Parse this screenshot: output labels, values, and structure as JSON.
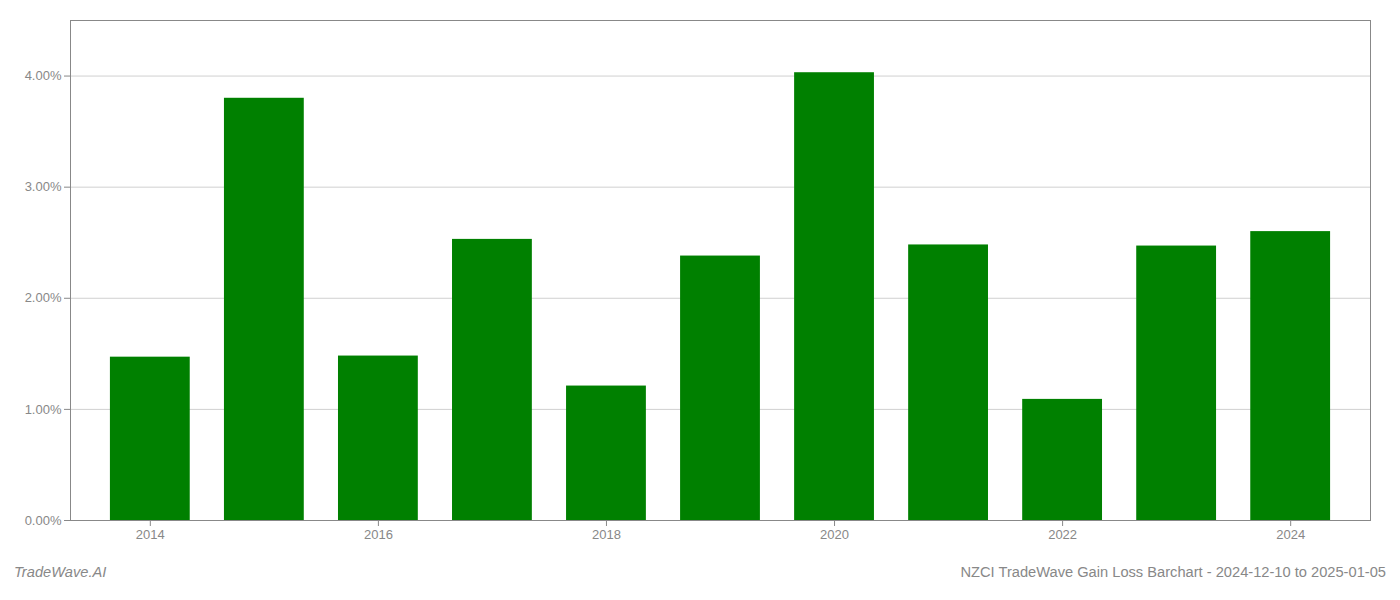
{
  "chart_data": {
    "type": "bar",
    "x": [
      2014,
      2015,
      2016,
      2017,
      2018,
      2019,
      2020,
      2021,
      2022,
      2023,
      2024
    ],
    "values": [
      0.0147,
      0.038,
      0.0148,
      0.0253,
      0.0121,
      0.0238,
      0.0403,
      0.0248,
      0.0109,
      0.0247,
      0.026
    ],
    "color": "#008000",
    "xlim": [
      2013.3,
      2024.7
    ],
    "xticks": [
      2014,
      2016,
      2018,
      2020,
      2022,
      2024
    ],
    "ylim": [
      0,
      0.045
    ],
    "yticks": [
      {
        "value": 0.0,
        "label": "0.00%"
      },
      {
        "value": 0.01,
        "label": "1.00%"
      },
      {
        "value": 0.02,
        "label": "2.00%"
      },
      {
        "value": 0.03,
        "label": "3.00%"
      },
      {
        "value": 0.04,
        "label": "4.00%"
      }
    ],
    "grid": true,
    "annotations": [
      "TradeWave.AI",
      "NZCI TradeWave Gain Loss Barchart - 2024-12-10 to 2025-01-05"
    ]
  }
}
